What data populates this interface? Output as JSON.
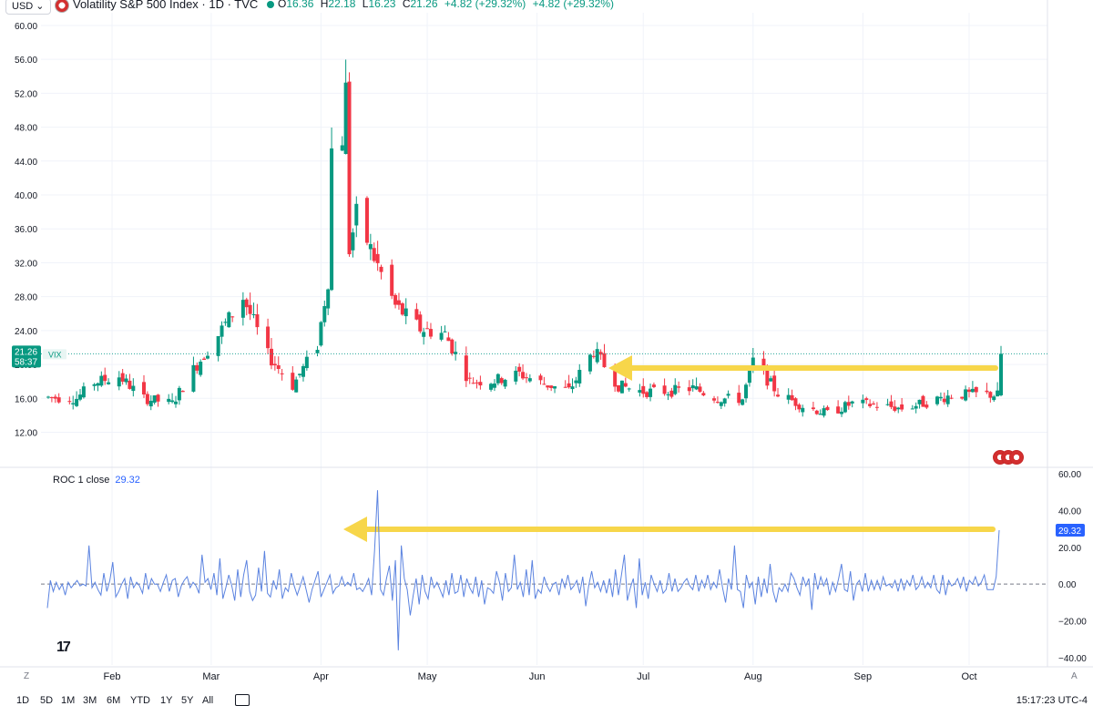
{
  "topbar": {
    "currency": "USD ⌄",
    "title": "Volatility S&P 500 Index · 1D · TVC",
    "ohlc": {
      "o_label": "O",
      "o": "16.36",
      "h_label": "H",
      "h": "22.18",
      "l_label": "L",
      "l": "16.23",
      "c_label": "C",
      "c": "21.26",
      "change": "+4.82 (+29.32%)",
      "change2": "+4.82 (+29.32%)"
    }
  },
  "price_tag": {
    "value": "21.26",
    "ticker": "VIX",
    "countdown": "58:37"
  },
  "roc": {
    "label": "ROC 1 close",
    "value": "29.32",
    "tag": "29.32"
  },
  "bottom": {
    "timeframes": [
      "1D",
      "5D",
      "1M",
      "3M",
      "6M",
      "YTD",
      "1Y",
      "5Y",
      "All"
    ],
    "clock": "15:17:23 UTC-4",
    "z": "Z",
    "a": "A"
  },
  "logo": "17",
  "colors": {
    "up": "#089981",
    "down": "#f23645",
    "roc": "#5b83e0",
    "arrow": "#f7d64a",
    "last": "#26a69a"
  },
  "chart_data": [
    {
      "type": "candlestick",
      "title": "Volatility S&P 500 Index · 1D · TVC",
      "y_ticks": [
        12,
        16,
        20,
        24,
        28,
        32,
        36,
        40,
        44,
        48,
        52,
        56,
        60
      ],
      "y_tick_labels": [
        "12.00",
        "16.00",
        "20.00",
        "24.00",
        "28.00",
        "32.00",
        "36.00",
        "40.00",
        "44.00",
        "48.00",
        "52.00",
        "56.00",
        "60.00"
      ],
      "ylim": [
        8.4,
        61.5
      ],
      "x_tick_labels": [
        "Feb",
        "Mar",
        "Apr",
        "May",
        "Jun",
        "Jul",
        "Aug",
        "Sep",
        "Oct"
      ],
      "x_tick_dates": [
        "2025-02-01",
        "2025-03-01",
        "2025-04-01",
        "2025-05-01",
        "2025-06-01",
        "2025-07-01",
        "2025-08-01",
        "2025-09-01",
        "2025-10-01"
      ],
      "last_close": 21.26,
      "close_series": {
        "x": [
          "2025-01-15",
          "2025-01-22",
          "2025-01-27",
          "2025-02-03",
          "2025-02-10",
          "2025-02-18",
          "2025-02-24",
          "2025-03-03",
          "2025-03-10",
          "2025-03-17",
          "2025-03-24",
          "2025-03-31",
          "2025-04-03",
          "2025-04-04",
          "2025-04-07",
          "2025-04-08",
          "2025-04-09",
          "2025-04-11",
          "2025-04-16",
          "2025-04-22",
          "2025-04-29",
          "2025-05-06",
          "2025-05-13",
          "2025-05-20",
          "2025-05-27",
          "2025-06-03",
          "2025-06-10",
          "2025-06-17",
          "2025-06-24",
          "2025-07-01",
          "2025-07-08",
          "2025-07-15",
          "2025-07-22",
          "2025-07-29",
          "2025-08-01",
          "2025-08-08",
          "2025-08-15",
          "2025-08-22",
          "2025-08-29",
          "2025-09-05",
          "2025-09-12",
          "2025-09-19",
          "2025-09-26",
          "2025-10-03",
          "2025-10-09",
          "2025-10-10"
        ],
        "values": [
          16.1,
          16.0,
          17.9,
          18.6,
          16.0,
          15.4,
          19.4,
          23.5,
          27.9,
          21.1,
          17.5,
          22.3,
          30.0,
          45.3,
          46.9,
          52.3,
          33.6,
          37.6,
          32.6,
          26.9,
          24.2,
          23.6,
          18.0,
          18.1,
          18.9,
          17.7,
          16.9,
          21.6,
          17.5,
          16.8,
          16.8,
          17.2,
          16.0,
          15.9,
          20.4,
          16.6,
          15.1,
          14.2,
          15.4,
          15.2,
          14.8,
          15.5,
          16.4,
          16.5,
          16.4,
          21.26
        ]
      },
      "reference_line": 21.26
    },
    {
      "type": "line",
      "title": "ROC 1 close",
      "y_ticks": [
        -40,
        -20,
        0,
        20,
        40,
        60
      ],
      "y_tick_labels": [
        "−40.00",
        "−20.00",
        "0.00",
        "20.00",
        "40.00",
        "60.00"
      ],
      "ylim": [
        -44,
        63
      ],
      "zero_line": 0,
      "values": [
        -13,
        2,
        -4,
        1,
        -3,
        0,
        -6,
        1,
        -2,
        0,
        2,
        -1,
        0,
        -1,
        21,
        -2,
        1,
        -3,
        -6,
        6,
        -4,
        2,
        12,
        -7,
        -4,
        0,
        3,
        -8,
        4,
        -2,
        1,
        -1,
        -5,
        6,
        -3,
        3,
        0,
        0,
        -4,
        1,
        5,
        -4,
        2,
        3,
        -7,
        -1,
        2,
        4,
        -2,
        1,
        -1,
        -5,
        16,
        1,
        3,
        -3,
        6,
        -6,
        14,
        -8,
        -2,
        5,
        -1,
        -9,
        8,
        -7,
        5,
        13,
        -4,
        -9,
        -6,
        9,
        -4,
        18,
        -5,
        -7,
        2,
        -3,
        8,
        -8,
        -2,
        -4,
        6,
        -1,
        -6,
        -1,
        4,
        -3,
        -10,
        -3,
        2,
        7,
        -7,
        -3,
        1,
        5,
        -5,
        -2,
        -1,
        4,
        -1,
        1,
        -1,
        6,
        -3,
        -2,
        -4,
        -1,
        3,
        -6,
        18,
        51,
        -3,
        -6,
        3,
        10,
        -9,
        13,
        -36,
        21,
        3,
        -3,
        -17,
        -6,
        3,
        -11,
        5,
        -4,
        -8,
        4,
        -2,
        1,
        -3,
        -7,
        2,
        -6,
        6,
        -5,
        -4,
        5,
        -7,
        3,
        -2,
        -5,
        4,
        -7,
        2,
        -11,
        -2,
        -3,
        -5,
        7,
        1,
        -9,
        6,
        -4,
        -2,
        16,
        -3,
        1,
        -7,
        8,
        -6,
        13,
        -8,
        -3,
        -5,
        4,
        -1,
        -4,
        0,
        1,
        -6,
        3,
        -2,
        5,
        -3,
        -1,
        2,
        -5,
        4,
        -12,
        -1,
        7,
        -2,
        1,
        -4,
        2,
        -5,
        3,
        -7,
        8,
        -6,
        5,
        16,
        -9,
        -2,
        3,
        -13,
        14,
        -6,
        1,
        -8,
        5,
        0,
        -4,
        2,
        -5,
        -3,
        6,
        -4,
        3,
        -4,
        -2,
        1,
        3,
        -1,
        -3,
        5,
        -4,
        2,
        -2,
        5,
        -3,
        1,
        -2,
        8,
        -2,
        -10,
        3,
        -3,
        21,
        -3,
        -4,
        -13,
        5,
        -2,
        1,
        -11,
        4,
        -7,
        3,
        -5,
        11,
        -4,
        -10,
        -2,
        -4,
        0,
        -4,
        6,
        3,
        -2,
        -6,
        4,
        -1,
        3,
        -14,
        6,
        -3,
        4,
        -1,
        3,
        -6,
        1,
        -4,
        3,
        11,
        -3,
        -4,
        7,
        -9,
        0,
        2,
        -4,
        6,
        -4,
        2,
        -3,
        2,
        -3,
        4,
        -1,
        0,
        -2,
        2,
        -4,
        3,
        -3,
        2,
        -1,
        5,
        -3,
        -1,
        4,
        -2,
        1,
        -2,
        5,
        -3,
        -5,
        5,
        -6,
        2,
        -1,
        0,
        3,
        -2,
        4,
        -4,
        2,
        0,
        4,
        -1,
        1,
        5,
        -3,
        -3,
        -3,
        4,
        29.32
      ],
      "last_value": 29.32
    }
  ]
}
